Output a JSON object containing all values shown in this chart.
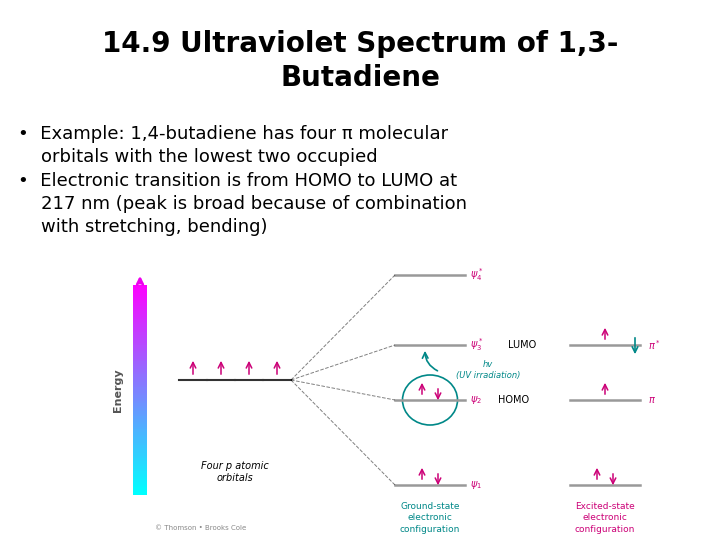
{
  "title_line1": "14.9 Ultraviolet Spectrum of 1,3-",
  "title_line2": "Butadiene",
  "bullet1": "•  Example: 1,4-butadiene has four π molecular\n    orbitals with the lowest two occupied",
  "bullet2": "•  Electronic transition is from HOMO to LUMO at\n    217 nm (peak is broad because of combination\n    with stretching, bending)",
  "bg_color": "#ffffff",
  "title_color": "#000000",
  "text_color": "#000000",
  "title_fontsize": 20,
  "body_fontsize": 13,
  "pink": "#cc0077",
  "teal": "#008888",
  "gray": "#888888",
  "arrow_gradient_top": "#ff00ff",
  "arrow_gradient_bot": "#00ccff"
}
